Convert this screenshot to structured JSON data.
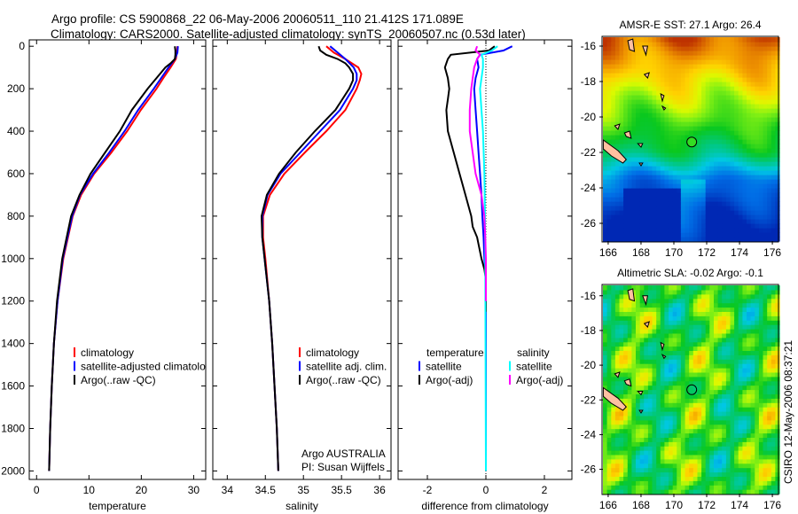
{
  "title": {
    "line1": "Argo profile: CS 5900868_22 06-May-2006 20060511_110 21.412S 171.089E",
    "line2": "Climatology: CARS2000. Satellite-adjusted climatology: synTS_20060507.nc (0.53d later)"
  },
  "footer_stamp": "CSIRO 12-May-2006 08:37:21",
  "colors": {
    "climatology": "#ff0000",
    "satellite": "#0000ff",
    "argo": "#000000",
    "sal_satellite": "#00ffff",
    "sal_argo": "#ff00ff",
    "land": "#ffc0a0"
  },
  "chart_data": [
    {
      "type": "line",
      "id": "temperature",
      "xlabel": "temperature",
      "ylabel": "",
      "xlim": [
        -1.4,
        32.3
      ],
      "ylim": [
        -30,
        2040
      ],
      "xticks": [
        0,
        10,
        20,
        30
      ],
      "yticks": [
        0,
        200,
        400,
        600,
        800,
        1000,
        1200,
        1400,
        1600,
        1800,
        2000
      ],
      "legend": [
        "climatology",
        "satellite-adjusted climatology",
        "Argo(..raw -QC)"
      ],
      "series": [
        {
          "name": "climatology",
          "color": "#ff0000",
          "depth": [
            0,
            30,
            60,
            100,
            150,
            200,
            300,
            400,
            500,
            600,
            700,
            800,
            1000,
            1200,
            1400,
            1600,
            1800,
            2000
          ],
          "values": [
            26.9,
            26.8,
            26.6,
            25.6,
            24.2,
            22.9,
            19.9,
            17.3,
            14.3,
            11.0,
            8.5,
            6.9,
            5.1,
            4.0,
            3.3,
            2.9,
            2.6,
            2.4
          ]
        },
        {
          "name": "satellite-adjusted climatology",
          "color": "#0000ff",
          "depth": [
            0,
            30,
            60,
            100,
            150,
            200,
            300,
            400,
            500,
            600,
            700,
            800,
            1000,
            1200,
            1400,
            1600,
            1800,
            2000
          ],
          "values": [
            27.0,
            26.9,
            26.4,
            25.2,
            23.8,
            22.4,
            19.4,
            16.8,
            13.9,
            10.8,
            8.3,
            6.8,
            5.0,
            4.0,
            3.3,
            2.9,
            2.6,
            2.4
          ]
        },
        {
          "name": "Argo(..raw -QC)",
          "color": "#000000",
          "depth": [
            0,
            20,
            40,
            60,
            80,
            100,
            150,
            200,
            300,
            400,
            500,
            600,
            700,
            800,
            1000,
            1200,
            1400,
            1600,
            1800,
            2000
          ],
          "values": [
            26.4,
            26.5,
            26.5,
            26.4,
            25.6,
            24.6,
            22.9,
            21.2,
            18.2,
            15.9,
            13.1,
            10.3,
            8.2,
            6.6,
            4.9,
            3.9,
            3.3,
            2.9,
            2.6,
            2.4
          ]
        }
      ]
    },
    {
      "type": "line",
      "id": "salinity",
      "xlabel": "salinity",
      "xlim": [
        33.81,
        36.15
      ],
      "ylim": [
        -30,
        2040
      ],
      "xticks": [
        34,
        34.5,
        35,
        35.5,
        36
      ],
      "xtick_labels": [
        "34",
        "34.5",
        "35",
        "35.5",
        "36"
      ],
      "legend": [
        "climatology",
        "satellite adj. clim.",
        "Argo(..raw -QC)"
      ],
      "annotation": [
        "Argo AUSTRALIA",
        "PI: Susan Wijffels"
      ],
      "series": [
        {
          "name": "climatology",
          "color": "#ff0000",
          "depth": [
            0,
            30,
            60,
            100,
            130,
            160,
            200,
            300,
            400,
            500,
            600,
            700,
            800,
            900,
            1000,
            1200,
            1400,
            1600,
            1800,
            2000
          ],
          "values": [
            35.3,
            35.4,
            35.55,
            35.72,
            35.76,
            35.74,
            35.7,
            35.55,
            35.3,
            35.02,
            34.75,
            34.56,
            34.47,
            34.47,
            34.5,
            34.55,
            34.59,
            34.62,
            34.65,
            34.67
          ]
        },
        {
          "name": "satellite adj. clim.",
          "color": "#0000ff",
          "depth": [
            0,
            30,
            60,
            100,
            130,
            160,
            200,
            300,
            400,
            500,
            600,
            700,
            800,
            900,
            1000,
            1200,
            1400,
            1600,
            1800,
            2000
          ],
          "values": [
            35.35,
            35.45,
            35.55,
            35.66,
            35.7,
            35.7,
            35.65,
            35.48,
            35.22,
            34.96,
            34.7,
            34.53,
            34.46,
            34.46,
            34.49,
            34.55,
            34.59,
            34.62,
            34.65,
            34.67
          ]
        },
        {
          "name": "Argo(..raw -QC)",
          "color": "#000000",
          "depth": [
            0,
            20,
            40,
            60,
            80,
            100,
            130,
            160,
            200,
            300,
            400,
            500,
            600,
            700,
            800,
            900,
            1000,
            1200,
            1400,
            1600,
            1800,
            2000
          ],
          "values": [
            35.2,
            35.22,
            35.3,
            35.45,
            35.55,
            35.6,
            35.65,
            35.65,
            35.6,
            35.42,
            35.15,
            34.9,
            34.68,
            34.52,
            34.45,
            34.46,
            34.49,
            34.55,
            34.59,
            34.62,
            34.65,
            34.67
          ]
        }
      ]
    },
    {
      "type": "line",
      "id": "difference",
      "xlabel": "difference from climatology",
      "xlim": [
        -3.0,
        2.94
      ],
      "ylim": [
        -30,
        2040
      ],
      "xticks": [
        -2,
        0,
        2
      ],
      "legend_temperature": {
        "title": "temperature",
        "items": [
          "satellite",
          "Argo(-adj)"
        ]
      },
      "legend_salinity": {
        "title": "salinity",
        "items": [
          "satellite",
          "Argo(-adj)"
        ]
      },
      "series": [
        {
          "name": "temperature satellite",
          "color": "#0000ff",
          "depth": [
            0,
            20,
            40,
            60,
            100,
            150,
            200,
            300,
            400,
            500,
            600,
            700,
            800,
            900,
            1000,
            1100,
            2000
          ],
          "values": [
            0.9,
            0.6,
            -0.2,
            -0.3,
            -0.25,
            -0.35,
            -0.4,
            -0.35,
            -0.3,
            -0.25,
            -0.2,
            -0.15,
            -0.12,
            -0.08,
            -0.05,
            0,
            0
          ]
        },
        {
          "name": "temperature Argo(-adj)",
          "color": "#000000",
          "depth": [
            0,
            20,
            40,
            60,
            80,
            100,
            150,
            200,
            250,
            300,
            400,
            450,
            500,
            600,
            650,
            700,
            800,
            850,
            900,
            1000,
            1050,
            1100,
            1250
          ],
          "values": [
            0.3,
            0.1,
            -1.2,
            -1.3,
            -1.35,
            -1.4,
            -1.3,
            -1.25,
            -1.3,
            -1.35,
            -1.3,
            -1.2,
            -1.1,
            -0.9,
            -0.8,
            -0.7,
            -0.5,
            -0.45,
            -0.3,
            -0.15,
            -0.05,
            0,
            0
          ]
        },
        {
          "name": "salinity satellite",
          "color": "#00ffff",
          "depth": [
            0,
            20,
            40,
            60,
            100,
            200,
            300,
            400,
            600,
            800,
            1000,
            2000
          ],
          "values": [
            0.4,
            0.2,
            -0.15,
            -0.1,
            -0.1,
            -0.2,
            -0.15,
            -0.1,
            -0.05,
            -0.03,
            -0.02,
            0
          ]
        },
        {
          "name": "salinity Argo(-adj)",
          "color": "#ff00ff",
          "depth": [
            0,
            20,
            40,
            60,
            100,
            150,
            200,
            300,
            400,
            500,
            600,
            700,
            800,
            900,
            1000,
            1200
          ],
          "values": [
            -0.3,
            -0.35,
            -0.2,
            -0.3,
            -0.4,
            -0.45,
            -0.5,
            -0.55,
            -0.55,
            -0.45,
            -0.35,
            -0.15,
            -0.05,
            -0.02,
            0,
            0
          ]
        }
      ]
    },
    {
      "type": "heatmap",
      "id": "sst-map",
      "title": "AMSR-E SST: 27.1 Argo: 26.4",
      "xlim": [
        165.68,
        176.32
      ],
      "ylim": [
        -27.0,
        -15.5
      ],
      "xticks": [
        166,
        168,
        170,
        172,
        174,
        176
      ],
      "yticks": [
        -16,
        -18,
        -20,
        -22,
        -24,
        -26
      ],
      "argo_position": [
        171.089,
        -21.412
      ],
      "color_range": [
        23.5,
        28.0
      ]
    },
    {
      "type": "heatmap",
      "id": "sla-map",
      "title": "Altimetric SLA: -0.02 Argo: -0.1",
      "xlim": [
        165.68,
        176.32
      ],
      "ylim": [
        -27.4,
        -15.4
      ],
      "xticks": [
        166,
        168,
        170,
        172,
        174,
        176
      ],
      "yticks": [
        -16,
        -18,
        -20,
        -22,
        -24,
        -26
      ],
      "argo_position": [
        171.089,
        -21.412
      ],
      "color_range": [
        -0.3,
        0.3
      ]
    }
  ]
}
